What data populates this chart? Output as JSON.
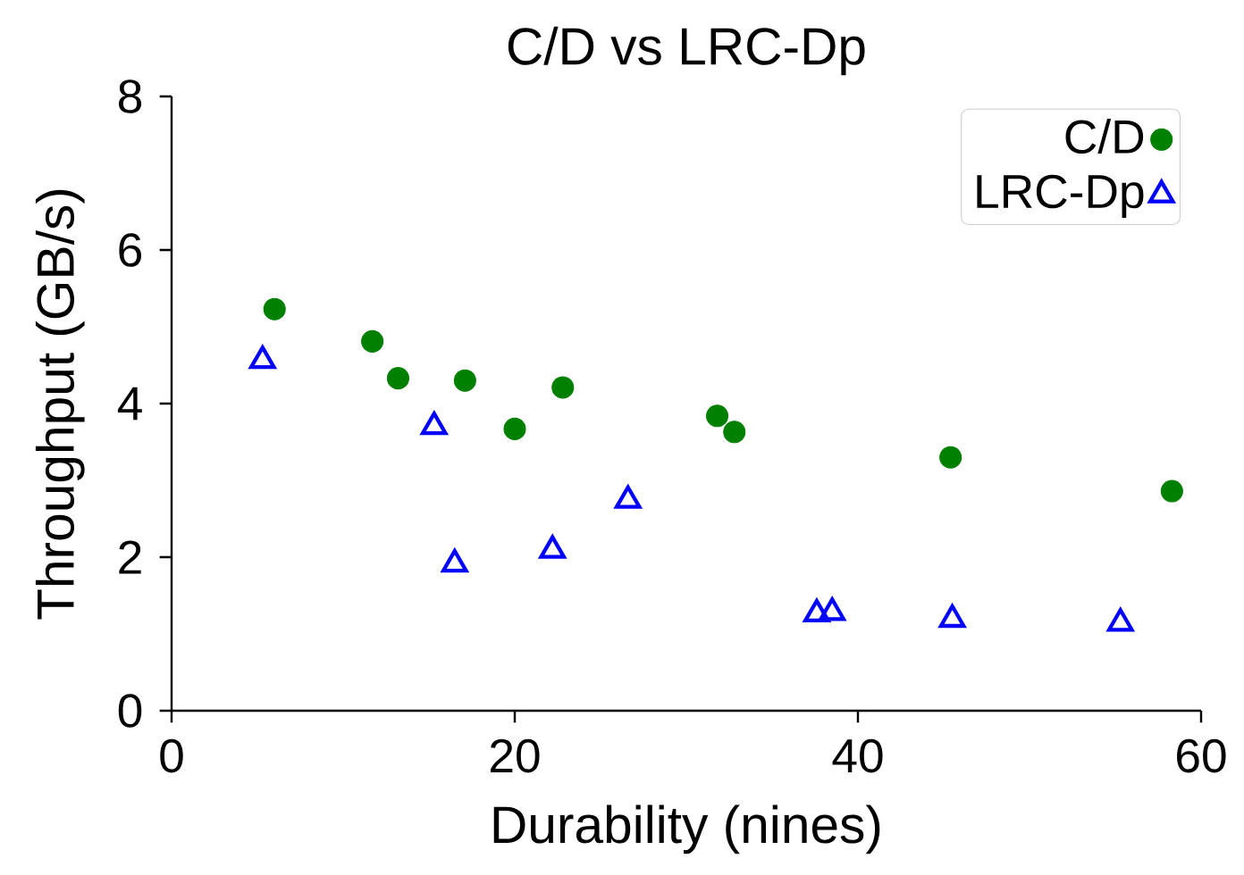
{
  "chart_data": {
    "type": "scatter",
    "title": "C/D vs LRC-Dp",
    "xlabel": "Durability (nines)",
    "ylabel": "Throughput (GB/s)",
    "xlim": [
      0,
      60
    ],
    "ylim": [
      0,
      8
    ],
    "xticks": [
      0,
      20,
      40,
      60
    ],
    "yticks": [
      0,
      2,
      4,
      6,
      8
    ],
    "legend": "top right",
    "series": [
      {
        "name": "C/D",
        "color": "#008000",
        "marker": "circle",
        "x": [
          6.0,
          11.7,
          13.2,
          17.1,
          20.0,
          22.8,
          31.8,
          32.8,
          45.4,
          58.3
        ],
        "values": [
          5.23,
          4.81,
          4.33,
          4.3,
          3.67,
          4.21,
          3.84,
          3.63,
          3.3,
          2.86
        ]
      },
      {
        "name": "LRC-Dp",
        "color": "#0000ff",
        "marker": "triangle",
        "x": [
          5.3,
          15.3,
          16.5,
          22.2,
          26.6,
          37.6,
          38.5,
          45.5,
          55.3
        ],
        "values": [
          4.56,
          3.7,
          1.91,
          2.09,
          2.74,
          1.26,
          1.28,
          1.19,
          1.14
        ]
      }
    ]
  }
}
